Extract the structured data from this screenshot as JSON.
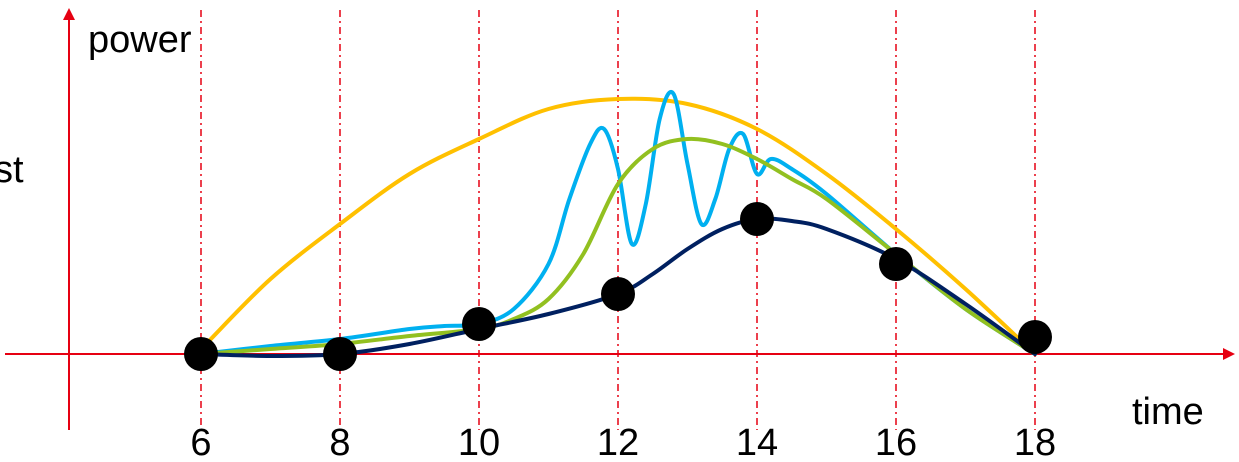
{
  "chart_data": {
    "type": "line",
    "title": "",
    "xlabel": "time",
    "ylabel": "power",
    "clipped_left_label": "st",
    "x_ticks": [
      6,
      8,
      10,
      12,
      14,
      16,
      18
    ],
    "x_tick_labels": [
      "6",
      "8",
      "10",
      "12",
      "14",
      "16",
      "18"
    ],
    "grid": "vertical dashed lines at x ticks",
    "legend": "none",
    "colors": {
      "axis": "#e60012",
      "gridline": "#e60012",
      "orange": "#ffc000",
      "cyan": "#00b0f0",
      "green": "#92c020",
      "navy": "#002060",
      "points": "#000000"
    },
    "points": {
      "x": [
        6,
        8,
        10,
        12,
        14,
        16,
        18
      ],
      "y": [
        0,
        0,
        0.3,
        0.6,
        1.35,
        0.9,
        0.17
      ]
    },
    "series": [
      {
        "color_key": "orange",
        "x": [
          6.1,
          7,
          8,
          9,
          10,
          11,
          12,
          13,
          14,
          15,
          16,
          17,
          18
        ],
        "y": [
          0.12,
          0.75,
          1.3,
          1.8,
          2.15,
          2.45,
          2.55,
          2.5,
          2.25,
          1.8,
          1.25,
          0.65,
          0.0
        ]
      },
      {
        "color_key": "cyan",
        "x": [
          6,
          7,
          8,
          9,
          9.5,
          10,
          10.5,
          11,
          11.3,
          11.6,
          11.8,
          12.0,
          12.2,
          12.4,
          12.6,
          12.8,
          13.0,
          13.2,
          13.4,
          13.6,
          13.8,
          14.0,
          14.2,
          14.5,
          15,
          16,
          17,
          18
        ],
        "y": [
          0,
          0.08,
          0.15,
          0.25,
          0.28,
          0.3,
          0.45,
          0.9,
          1.55,
          2.1,
          2.25,
          1.85,
          1.1,
          1.5,
          2.35,
          2.6,
          1.9,
          1.3,
          1.55,
          2.05,
          2.2,
          1.8,
          1.95,
          1.85,
          1.6,
          1.0,
          0.45,
          0.0
        ]
      },
      {
        "color_key": "green",
        "x": [
          6,
          7,
          8,
          9,
          10,
          10.5,
          11,
          11.5,
          12,
          12.5,
          13,
          13.5,
          14,
          14.5,
          15,
          16,
          17,
          18
        ],
        "y": [
          0,
          0.05,
          0.1,
          0.18,
          0.25,
          0.35,
          0.55,
          1.0,
          1.7,
          2.05,
          2.15,
          2.1,
          1.95,
          1.75,
          1.55,
          1.0,
          0.45,
          0.0
        ]
      },
      {
        "color_key": "navy",
        "x": [
          6,
          7,
          8,
          9,
          10,
          11,
          12,
          12.5,
          13,
          13.5,
          14,
          14.5,
          15,
          16,
          17,
          18
        ],
        "y": [
          0,
          -0.02,
          0.0,
          0.1,
          0.25,
          0.4,
          0.6,
          0.8,
          1.05,
          1.25,
          1.35,
          1.33,
          1.25,
          0.95,
          0.5,
          0.0
        ]
      }
    ]
  }
}
